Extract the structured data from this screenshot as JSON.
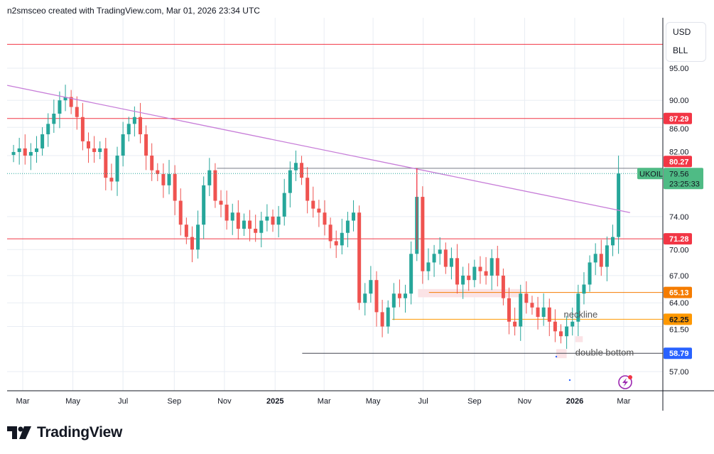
{
  "header": {
    "text": "n2smsceo created with TradingView.com, Mar 01, 2026 23:34 UTC"
  },
  "price_scale": {
    "currency": "USD",
    "unit": "BLL"
  },
  "footer": {
    "logo_text": "TradingView"
  },
  "colors": {
    "up": "#26a69a",
    "down": "#ef5350",
    "red_level": "#f23645",
    "orange_level": "#f57c00",
    "orange2_level": "#ff9800",
    "blue_level": "#2962ff",
    "trend": "#c77dd8",
    "grid": "#e8edf3"
  },
  "chart_data": {
    "type": "candlestick",
    "symbol": "UKOIL",
    "scale": "log",
    "ylim": [
      55.0,
      103.0
    ],
    "x_unit": "weeks since 2024-02-19",
    "weekly_closes": [
      82.5,
      83,
      82,
      82.5,
      83,
      85,
      86.5,
      88,
      90,
      90.5,
      89,
      87.5,
      84,
      83,
      82.5,
      83,
      79,
      78.5,
      82,
      85,
      86.5,
      87.5,
      85,
      82,
      80,
      79.5,
      78,
      79.5,
      76,
      73,
      71.5,
      70,
      73,
      78,
      80,
      76,
      75.5,
      73.5,
      74.5,
      72.5,
      73.5,
      72.5,
      72,
      73.5,
      74,
      73,
      74,
      77,
      80,
      81,
      79,
      76,
      75,
      74.5,
      73,
      71,
      70.5,
      72,
      73.5,
      74.5,
      64,
      65,
      66.5,
      63,
      61.5,
      63.5,
      65,
      64.5,
      65,
      69.5,
      76.5,
      67.5,
      68.5,
      69.5,
      70,
      68,
      69,
      66,
      67,
      66.5,
      68,
      67.5,
      67,
      69,
      67,
      64.5,
      62,
      61.5,
      65,
      64,
      63.5,
      62.5,
      63.5,
      62,
      61,
      60.5,
      61.5,
      62,
      65,
      66,
      68.5,
      69.5,
      68,
      70.5,
      71.5,
      79.56
    ],
    "last_price": {
      "value": "79.56",
      "countdown": "23:25:33"
    },
    "y_ticks": [
      "95.00",
      "90.00",
      "86.00",
      "82.00",
      "74.00",
      "70.00",
      "67.00",
      "64.00",
      "61.50",
      "57.00"
    ],
    "x_ticks": [
      {
        "label": "Mar",
        "x": 1.6
      },
      {
        "label": "May",
        "x": 10.3
      },
      {
        "label": "Jul",
        "x": 19.0
      },
      {
        "label": "Sep",
        "x": 27.9
      },
      {
        "label": "Nov",
        "x": 36.6
      },
      {
        "label": "2025",
        "x": 45.4,
        "bold": true
      },
      {
        "label": "Mar",
        "x": 53.9
      },
      {
        "label": "May",
        "x": 62.4
      },
      {
        "label": "Jul",
        "x": 71.1
      },
      {
        "label": "Sep",
        "x": 80.0
      },
      {
        "label": "Nov",
        "x": 88.7
      },
      {
        "label": "2026",
        "x": 97.4,
        "bold": true
      },
      {
        "label": "Mar",
        "x": 105.9
      }
    ],
    "levels": [
      {
        "price": 98.9,
        "from": -2,
        "color": "#f23645"
      },
      {
        "price": 87.29,
        "label": "87.29",
        "from": -2,
        "color": "#f23645",
        "text": "#fff"
      },
      {
        "price": 80.27,
        "label": "80.27",
        "from": 35.3,
        "color": "#f23645",
        "line": "#787b86",
        "text": "#fff"
      },
      {
        "price": 71.28,
        "label": "71.28",
        "from": -2,
        "color": "#f23645",
        "text": "#fff"
      },
      {
        "price": 65.13,
        "label": "65.13",
        "from": 72.1,
        "color": "#f57c00",
        "text": "#fff"
      },
      {
        "price": 62.25,
        "label": "62.25",
        "from": 65.7,
        "color": "#ff9800",
        "text": "#131722"
      },
      {
        "price": 58.79,
        "label": "58.79",
        "from": 50.1,
        "color": "#2962ff",
        "line": "#434651",
        "text": "#fff"
      }
    ],
    "trendline": {
      "x": [
        -1.1,
        107.0
      ],
      "y": [
        92.3,
        74.5
      ]
    },
    "vertical_line": {
      "x": 70.0,
      "y": [
        80.27,
        70.0
      ]
    },
    "annotations": [
      {
        "text": "neckline",
        "x": 95.5,
        "price": 62.8
      },
      {
        "text": "double bottom",
        "x": 97.5,
        "price": 58.9
      }
    ],
    "zones": [
      {
        "x": [
          70.2,
          88.2
        ],
        "y": [
          65.5,
          64.6
        ]
      },
      {
        "x": [
          94.2,
          96.0
        ],
        "y": [
          59.2,
          58.3
        ]
      },
      {
        "x": [
          97.5,
          98.8
        ],
        "y": [
          60.5,
          59.9
        ]
      }
    ]
  }
}
